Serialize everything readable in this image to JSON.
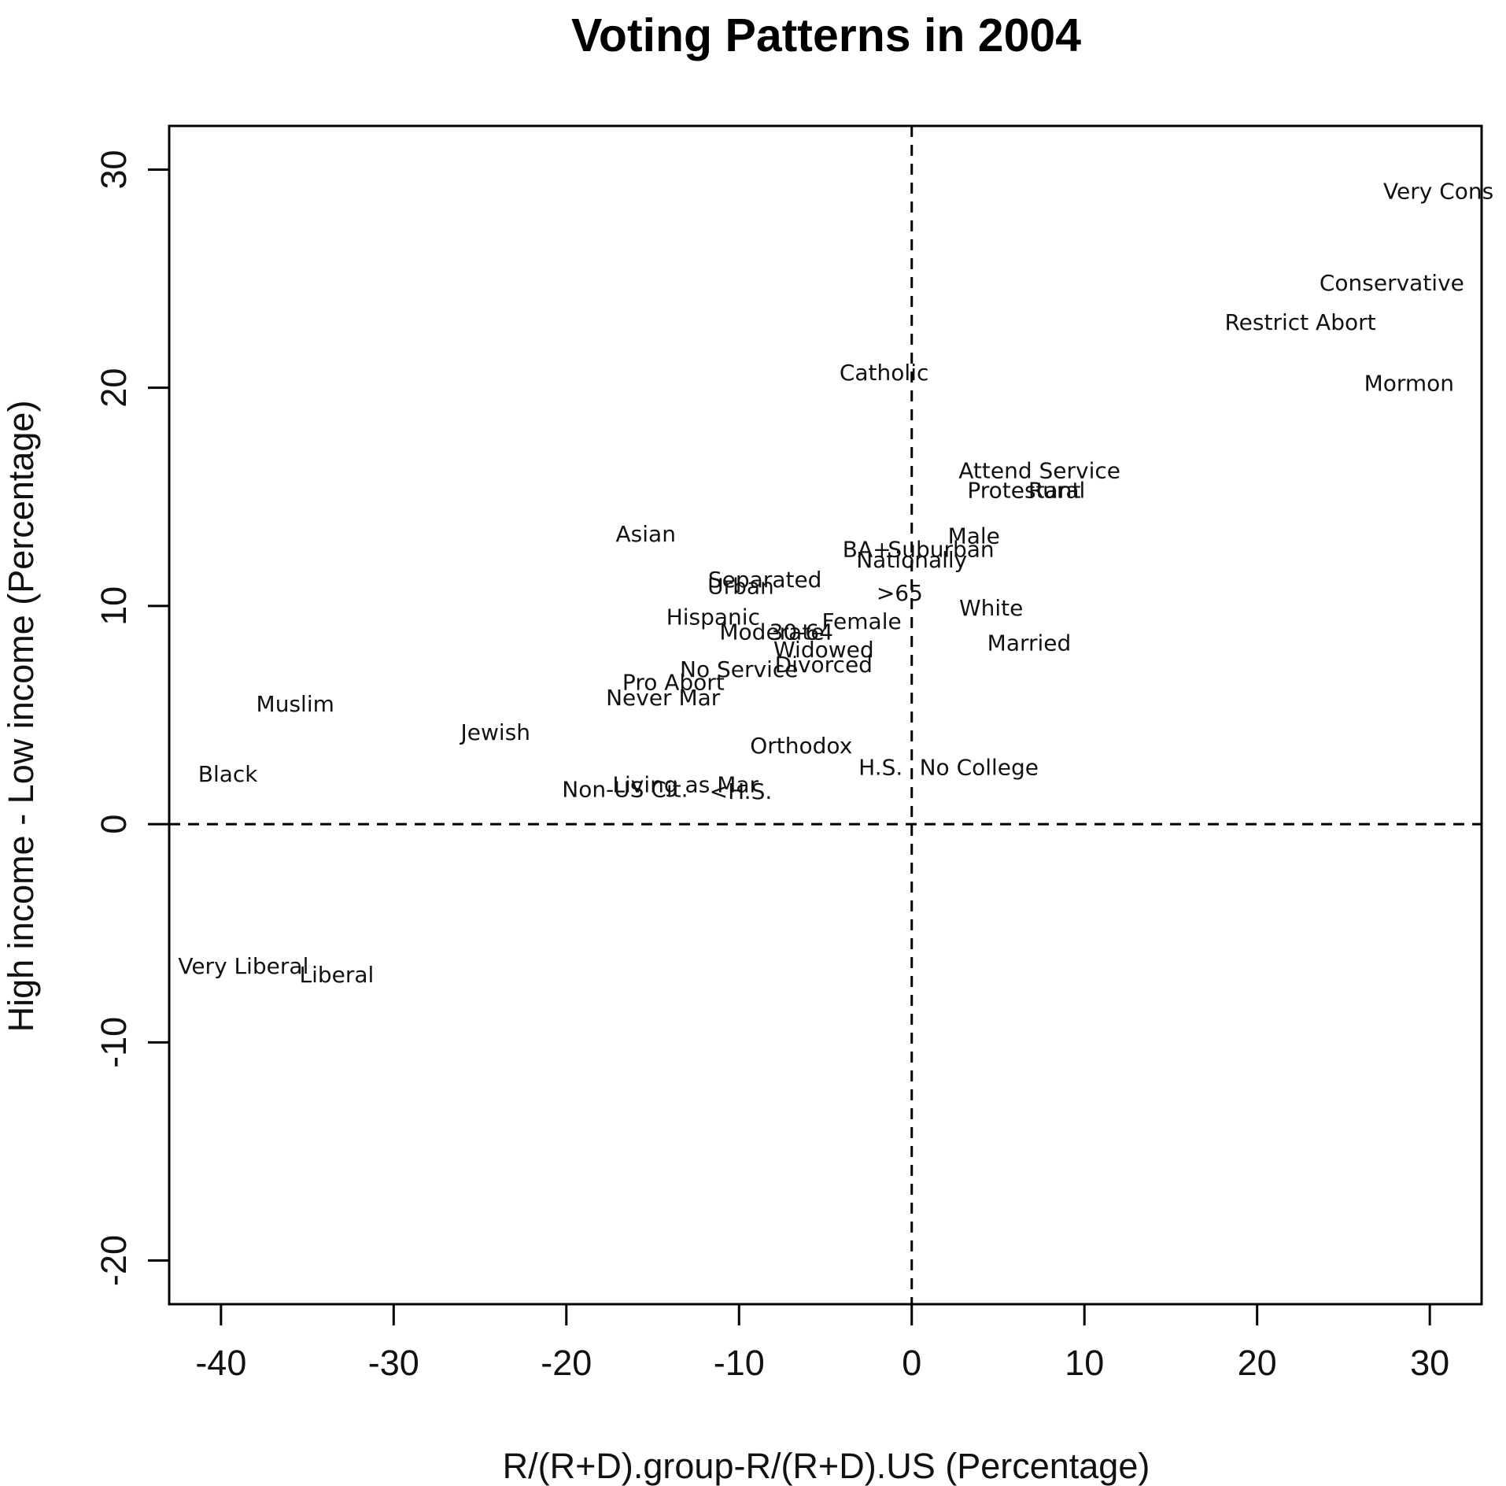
{
  "chart_data": {
    "type": "scatter",
    "title": "Voting Patterns in 2004",
    "xlabel": "R/(R+D).group-R/(R+D).US (Percentage)",
    "ylabel": "High income - Low income (Percentage)",
    "xlim": [
      -43,
      33
    ],
    "ylim": [
      -22,
      32
    ],
    "xticks": [
      -40,
      -30,
      -20,
      -10,
      0,
      10,
      20,
      30
    ],
    "yticks": [
      -20,
      -10,
      0,
      10,
      20,
      30
    ],
    "xtick_labels": [
      "-40",
      "-30",
      "-20",
      "-10",
      "0",
      "10",
      "20",
      "30"
    ],
    "ytick_labels": [
      "-20",
      "-10",
      "0",
      "10",
      "20",
      "30"
    ],
    "reference_lines": {
      "x": 0,
      "y": 0,
      "style": "dashed"
    },
    "grid": false,
    "points": [
      {
        "label": "Very Cons",
        "x": 30.5,
        "y": 29.0
      },
      {
        "label": "Conservative",
        "x": 27.8,
        "y": 24.8
      },
      {
        "label": "Restrict Abort",
        "x": 22.5,
        "y": 23.0
      },
      {
        "label": "Mormon",
        "x": 28.8,
        "y": 20.2
      },
      {
        "label": "Catholic",
        "x": -1.6,
        "y": 20.7
      },
      {
        "label": "Attend Service",
        "x": 7.4,
        "y": 16.2
      },
      {
        "label": "Protestant",
        "x": 6.5,
        "y": 15.3
      },
      {
        "label": "Rural",
        "x": 8.4,
        "y": 15.3
      },
      {
        "label": "Male",
        "x": 3.6,
        "y": 13.2
      },
      {
        "label": "Suburban",
        "x": 1.7,
        "y": 12.6
      },
      {
        "label": "BA+",
        "x": -2.6,
        "y": 12.6
      },
      {
        "label": "Nationally",
        "x": 0.0,
        "y": 12.1
      },
      {
        "label": "Asian",
        "x": -15.4,
        "y": 13.3
      },
      {
        "label": "Separated",
        "x": -8.5,
        "y": 11.2
      },
      {
        "label": "Urban",
        "x": -9.9,
        "y": 10.9
      },
      {
        "label": ">65",
        "x": -0.7,
        "y": 10.6
      },
      {
        "label": "White",
        "x": 4.6,
        "y": 9.9
      },
      {
        "label": "Hispanic",
        "x": -11.5,
        "y": 9.5
      },
      {
        "label": "Female",
        "x": -2.9,
        "y": 9.3
      },
      {
        "label": "Moderate",
        "x": -8.1,
        "y": 8.8
      },
      {
        "label": "30-64",
        "x": -6.4,
        "y": 8.8
      },
      {
        "label": "Married",
        "x": 6.8,
        "y": 8.3
      },
      {
        "label": "Widowed",
        "x": -5.1,
        "y": 8.0
      },
      {
        "label": "Divorced",
        "x": -5.1,
        "y": 7.3
      },
      {
        "label": "No Service",
        "x": -10.0,
        "y": 7.1
      },
      {
        "label": "Pro Abort",
        "x": -13.8,
        "y": 6.5
      },
      {
        "label": "Never Mar",
        "x": -14.4,
        "y": 5.8
      },
      {
        "label": "Muslim",
        "x": -35.7,
        "y": 5.5
      },
      {
        "label": "Jewish",
        "x": -24.1,
        "y": 4.2
      },
      {
        "label": "Orthodox",
        "x": -6.4,
        "y": 3.6
      },
      {
        "label": "H.S.",
        "x": -1.8,
        "y": 2.6
      },
      {
        "label": "No College",
        "x": 3.9,
        "y": 2.6
      },
      {
        "label": "Black",
        "x": -39.6,
        "y": 2.3
      },
      {
        "label": "Living as Mar",
        "x": -13.1,
        "y": 1.8
      },
      {
        "label": "Non-US Cit.",
        "x": -16.6,
        "y": 1.6
      },
      {
        "label": "<H.S.",
        "x": -9.9,
        "y": 1.5
      },
      {
        "label": "Very Liberal",
        "x": -38.7,
        "y": -6.5
      },
      {
        "label": "Liberal",
        "x": -33.3,
        "y": -6.9
      }
    ]
  }
}
